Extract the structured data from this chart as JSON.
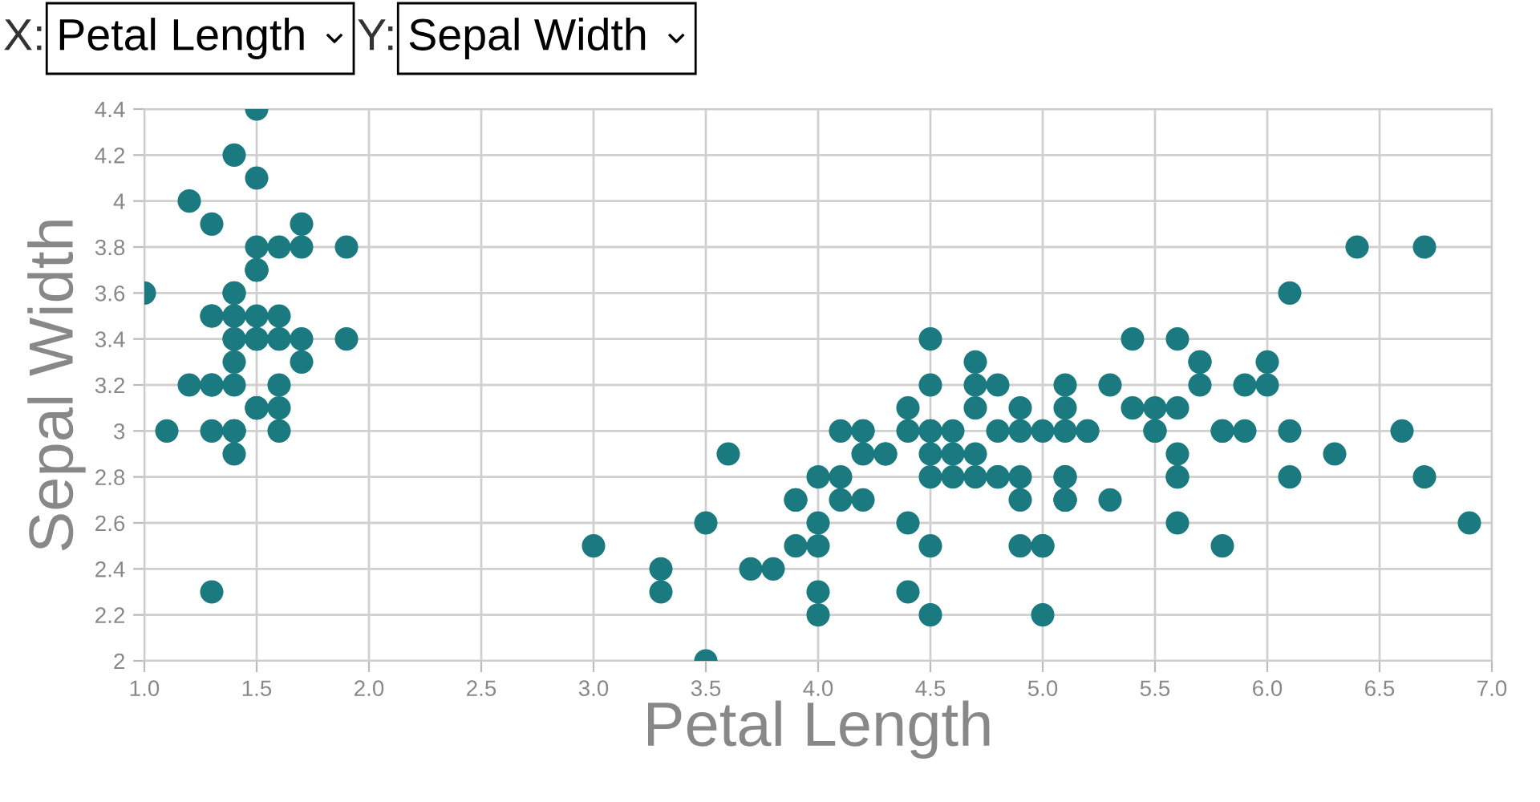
{
  "chart_data": {
    "type": "scatter",
    "xlabel": "Petal Length",
    "ylabel": "Sepal Width",
    "annotations": [
      "X:",
      "Petal Length",
      "Y:",
      "Sepal Width"
    ],
    "x": [
      1.4,
      1.4,
      1.3,
      1.5,
      1.4,
      1.7,
      1.4,
      1.5,
      1.4,
      1.5,
      1.5,
      1.6,
      1.4,
      1.1,
      1.2,
      1.5,
      1.3,
      1.4,
      1.7,
      1.5,
      1.7,
      1.5,
      1.0,
      1.7,
      1.9,
      1.6,
      1.6,
      1.5,
      1.4,
      1.6,
      1.6,
      1.5,
      1.5,
      1.4,
      1.5,
      1.2,
      1.3,
      1.4,
      1.3,
      1.5,
      1.3,
      1.3,
      1.3,
      1.6,
      1.9,
      1.4,
      1.6,
      1.4,
      1.5,
      1.4,
      4.7,
      4.5,
      4.9,
      4.0,
      4.6,
      4.5,
      4.7,
      3.3,
      4.6,
      3.9,
      3.5,
      4.2,
      4.0,
      4.7,
      3.6,
      4.4,
      4.5,
      4.1,
      4.5,
      3.9,
      4.8,
      4.0,
      4.9,
      4.7,
      4.3,
      4.4,
      4.8,
      5.0,
      4.5,
      3.5,
      3.8,
      3.7,
      3.9,
      5.1,
      4.5,
      4.5,
      4.7,
      4.4,
      4.1,
      4.0,
      4.4,
      4.6,
      4.0,
      3.3,
      4.2,
      4.2,
      4.2,
      4.3,
      3.0,
      4.1,
      6.0,
      5.1,
      5.9,
      5.6,
      5.8,
      6.6,
      4.5,
      6.3,
      5.8,
      6.1,
      5.1,
      5.3,
      5.5,
      5.0,
      5.1,
      5.3,
      5.5,
      6.7,
      6.9,
      5.0,
      5.7,
      4.9,
      6.7,
      4.9,
      5.7,
      6.0,
      4.8,
      4.9,
      5.6,
      5.8,
      6.1,
      6.4,
      5.6,
      5.1,
      5.6,
      6.1,
      5.6,
      5.5,
      4.8,
      5.4,
      5.6,
      5.1,
      5.1,
      5.9,
      5.7,
      5.2,
      5.0,
      5.2,
      5.4,
      5.1
    ],
    "series": [
      {
        "color": "#1a7a80",
        "values": [
          3.5,
          3.0,
          3.2,
          3.1,
          3.6,
          3.9,
          3.4,
          3.4,
          2.9,
          3.1,
          3.7,
          3.4,
          3.0,
          3.0,
          4.0,
          4.4,
          3.9,
          3.5,
          3.8,
          3.8,
          3.4,
          3.7,
          3.6,
          3.3,
          3.4,
          3.0,
          3.4,
          3.5,
          3.4,
          3.2,
          3.1,
          3.4,
          4.1,
          4.2,
          3.1,
          3.2,
          3.5,
          3.6,
          3.0,
          3.4,
          3.5,
          2.3,
          3.2,
          3.5,
          3.8,
          3.0,
          3.8,
          3.2,
          3.7,
          3.3,
          3.2,
          3.2,
          3.1,
          2.3,
          2.8,
          2.8,
          3.3,
          2.4,
          2.9,
          2.7,
          2.0,
          3.0,
          2.2,
          2.9,
          2.9,
          3.1,
          3.0,
          2.7,
          2.2,
          2.5,
          3.2,
          2.8,
          2.5,
          2.8,
          2.9,
          3.0,
          2.8,
          3.0,
          2.9,
          2.6,
          2.4,
          2.4,
          2.7,
          2.7,
          3.0,
          3.4,
          3.1,
          2.3,
          3.0,
          2.5,
          2.6,
          3.0,
          2.6,
          2.3,
          2.7,
          3.0,
          2.9,
          2.9,
          2.5,
          2.8,
          3.3,
          2.7,
          3.0,
          2.9,
          3.0,
          3.0,
          2.5,
          2.9,
          2.5,
          3.6,
          3.2,
          2.7,
          3.0,
          2.5,
          2.8,
          3.2,
          3.0,
          3.8,
          2.6,
          2.2,
          3.2,
          2.8,
          2.8,
          2.7,
          3.3,
          3.2,
          2.8,
          3.0,
          2.8,
          3.0,
          2.8,
          3.8,
          2.8,
          2.8,
          2.6,
          3.0,
          3.4,
          3.1,
          3.0,
          3.1,
          3.1,
          3.1,
          2.7,
          3.2,
          3.3,
          3.0,
          2.5,
          3.0,
          3.4,
          3.0
        ]
      }
    ],
    "marker": "circle",
    "grid": true,
    "xlim": [
      1.0,
      7.0
    ],
    "xticks": [
      {
        "value": 1.0,
        "label": "1.0"
      },
      {
        "value": 1.5,
        "label": "1.5"
      },
      {
        "value": 2.0,
        "label": "2.0"
      },
      {
        "value": 2.5,
        "label": "2.5"
      },
      {
        "value": 3.0,
        "label": "3.0"
      },
      {
        "value": 3.5,
        "label": "3.5"
      },
      {
        "value": 4.0,
        "label": "4.0"
      },
      {
        "value": 4.5,
        "label": "4.5"
      },
      {
        "value": 5.0,
        "label": "5.0"
      },
      {
        "value": 5.5,
        "label": "5.5"
      },
      {
        "value": 6.0,
        "label": "6.0"
      },
      {
        "value": 6.5,
        "label": "6.5"
      },
      {
        "value": 7.0,
        "label": "7.0"
      }
    ],
    "ylim": [
      2,
      4.4
    ],
    "yticks": [
      2,
      2.2,
      2.4,
      2.6,
      2.8,
      3,
      3.2,
      3.4,
      3.6,
      3.8,
      4,
      4.2,
      4.4
    ]
  }
}
